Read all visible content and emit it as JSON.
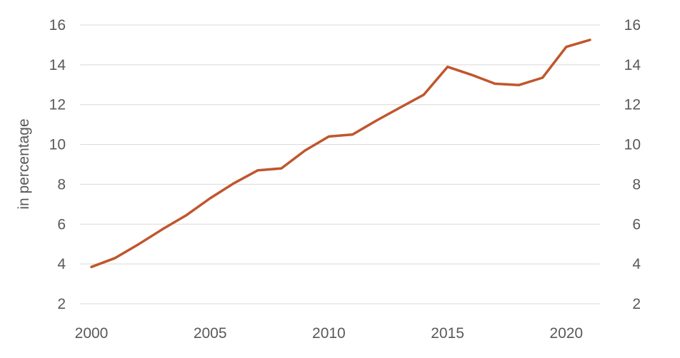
{
  "chart_data": {
    "type": "line",
    "title": "",
    "xlabel": "",
    "ylabel": "in percentage",
    "secondary_ylabel": "",
    "x": [
      2000,
      2001,
      2002,
      2003,
      2004,
      2005,
      2006,
      2007,
      2008,
      2009,
      2010,
      2011,
      2012,
      2013,
      2014,
      2015,
      2016,
      2017,
      2018,
      2019,
      2020,
      2021
    ],
    "series": [
      {
        "color": "#c0562c",
        "values": [
          3.85,
          4.3,
          5.0,
          5.75,
          6.45,
          7.3,
          8.05,
          8.7,
          8.8,
          9.7,
          10.4,
          10.5,
          11.2,
          11.85,
          12.5,
          13.9,
          13.5,
          13.05,
          12.98,
          13.35,
          14.9,
          15.25
        ]
      }
    ],
    "xlim": [
      2000,
      2021
    ],
    "ylim": [
      2,
      16
    ],
    "secondary_ylim": [
      2,
      16
    ],
    "x_ticks": [
      "2000",
      "2005",
      "2010",
      "2015",
      "2020"
    ],
    "y_ticks": [
      "2",
      "4",
      "6",
      "8",
      "10",
      "12",
      "14",
      "16"
    ],
    "secondary_y_ticks": [
      "2",
      "4",
      "6",
      "8",
      "10",
      "12",
      "14",
      "16"
    ],
    "grid": true,
    "legend": "none"
  }
}
